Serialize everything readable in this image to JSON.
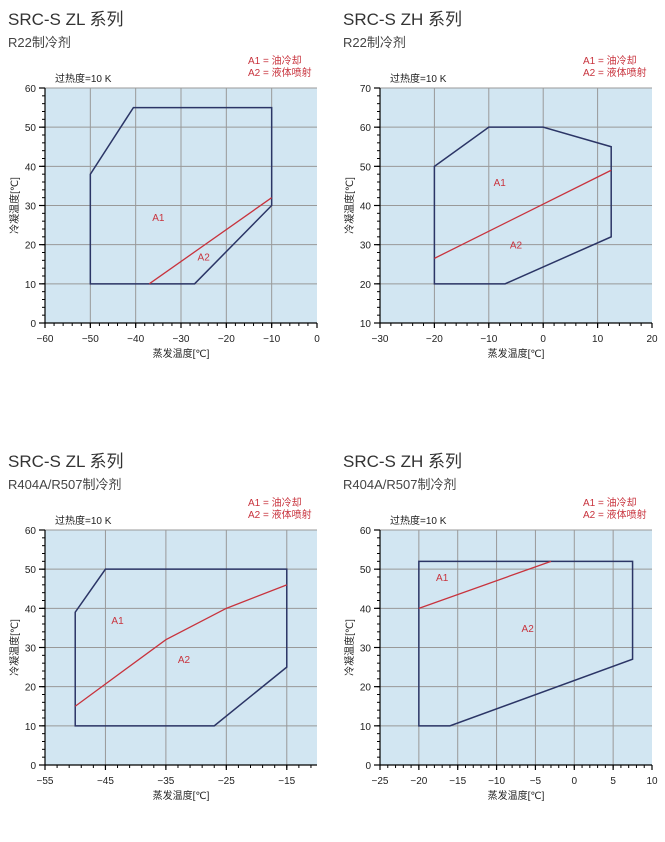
{
  "chart_data": [
    {
      "type": "area",
      "title": "SRC-S ZL 系列",
      "subtitle": "R22制冷剂",
      "superheat": "过热度=10 K",
      "legend": [
        "A1 = 油冷却",
        "A2 = 液体喷射"
      ],
      "xlabel": "蒸发温度[℃]",
      "ylabel": "冷凝温度[℃]",
      "xlim": [
        -60,
        0
      ],
      "ylim": [
        0,
        60
      ],
      "xticks": [
        -60,
        -50,
        -40,
        -30,
        -20,
        -10,
        0
      ],
      "yticks": [
        0,
        10,
        20,
        30,
        40,
        50,
        60
      ],
      "envelope": [
        [
          -50,
          10
        ],
        [
          -50,
          38
        ],
        [
          -40.5,
          55
        ],
        [
          -10,
          55
        ],
        [
          -10,
          30
        ],
        [
          -27,
          10
        ]
      ],
      "divider": [
        [
          -37,
          10
        ],
        [
          -10,
          32
        ]
      ],
      "region_labels": [
        {
          "text": "A1",
          "x": -35,
          "y": 26
        },
        {
          "text": "A2",
          "x": -25,
          "y": 16
        }
      ],
      "grid": true
    },
    {
      "type": "area",
      "title": "SRC-S ZH 系列",
      "subtitle": "R22制冷剂",
      "superheat": "过热度=10 K",
      "legend": [
        "A1 = 油冷却",
        "A2 = 液体喷射"
      ],
      "xlabel": "蒸发温度[℃]",
      "ylabel": "冷凝温度[℃]",
      "xlim": [
        -30,
        20
      ],
      "ylim": [
        10,
        70
      ],
      "xticks": [
        -30,
        -20,
        -10,
        0,
        10,
        20
      ],
      "yticks": [
        10,
        20,
        30,
        40,
        50,
        60,
        70
      ],
      "envelope": [
        [
          -20,
          20
        ],
        [
          -20,
          50
        ],
        [
          -10,
          60
        ],
        [
          0,
          60
        ],
        [
          12.5,
          55
        ],
        [
          12.5,
          32
        ],
        [
          -7,
          20
        ]
      ],
      "divider": [
        [
          -20,
          26.5
        ],
        [
          12.5,
          49
        ]
      ],
      "region_labels": [
        {
          "text": "A1",
          "x": -8,
          "y": 45
        },
        {
          "text": "A2",
          "x": -5,
          "y": 29
        }
      ],
      "grid": true
    },
    {
      "type": "area",
      "title": "SRC-S ZL 系列",
      "subtitle": "R404A/R507制冷剂",
      "superheat": "过热度=10 K",
      "legend": [
        "A1 = 油冷却",
        "A2 = 液体喷射"
      ],
      "xlabel": "蒸发温度[℃]",
      "ylabel": "冷凝温度[℃]",
      "xlim": [
        -55,
        -10
      ],
      "ylim": [
        0,
        60
      ],
      "xticks": [
        -55,
        -45,
        -35,
        -25,
        -15
      ],
      "yticks": [
        0,
        10,
        20,
        30,
        40,
        50,
        60
      ],
      "envelope": [
        [
          -50,
          10
        ],
        [
          -50,
          39
        ],
        [
          -45,
          50
        ],
        [
          -15,
          50
        ],
        [
          -15,
          25
        ],
        [
          -27,
          10
        ]
      ],
      "divider": [
        [
          -50,
          15
        ],
        [
          -35,
          32
        ],
        [
          -25,
          40
        ],
        [
          -15,
          46
        ]
      ],
      "region_labels": [
        {
          "text": "A1",
          "x": -43,
          "y": 36
        },
        {
          "text": "A2",
          "x": -32,
          "y": 26
        }
      ],
      "grid": true
    },
    {
      "type": "area",
      "title": "SRC-S ZH 系列",
      "subtitle": "R404A/R507制冷剂",
      "superheat": "过热度=10 K",
      "legend": [
        "A1 = 油冷却",
        "A2 = 液体喷射"
      ],
      "xlabel": "蒸发温度[℃]",
      "ylabel": "冷凝温度[℃]",
      "xlim": [
        -25,
        10
      ],
      "ylim": [
        0,
        60
      ],
      "xticks": [
        -25,
        -20,
        -15,
        -10,
        -5,
        0,
        5,
        10
      ],
      "yticks": [
        0,
        10,
        20,
        30,
        40,
        50,
        60
      ],
      "envelope": [
        [
          -20,
          10
        ],
        [
          -20,
          52
        ],
        [
          7.5,
          52
        ],
        [
          7.5,
          27
        ],
        [
          -16,
          10
        ]
      ],
      "divider": [
        [
          -20,
          40
        ],
        [
          -3,
          52
        ]
      ],
      "region_labels": [
        {
          "text": "A1",
          "x": -17,
          "y": 47
        },
        {
          "text": "A2",
          "x": -6,
          "y": 34
        }
      ],
      "grid": true
    }
  ],
  "colors": {
    "plot_bg": "#d2e6f2",
    "grid": "#999999",
    "envelope": "#2b3566",
    "divider": "#c8333d",
    "label": "#c8333d"
  }
}
